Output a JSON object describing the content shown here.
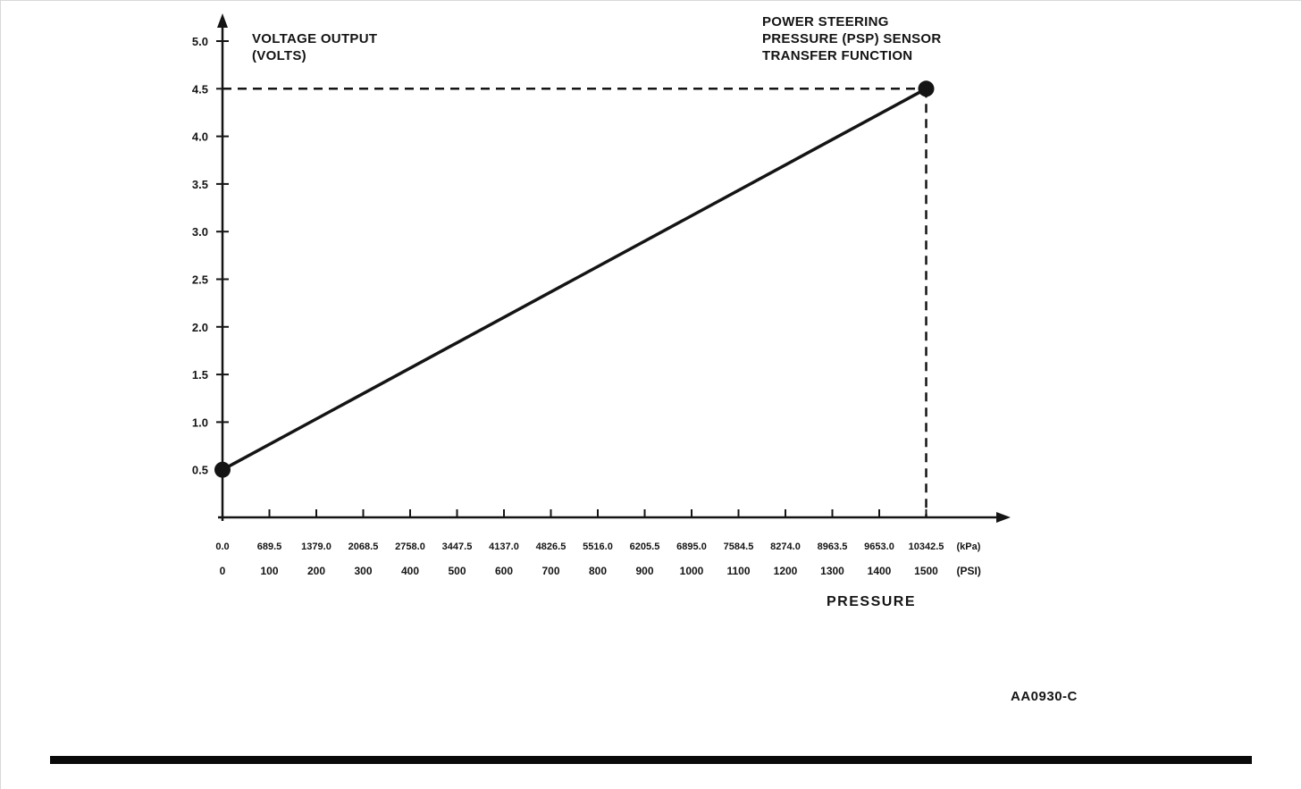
{
  "chart_data": {
    "type": "line",
    "title": "POWER STEERING PRESSURE (PSP) SENSOR TRANSFER FUNCTION",
    "title_lines": [
      "POWER STEERING",
      "PRESSURE (PSP) SENSOR",
      "TRANSFER FUNCTION"
    ],
    "ylabel_lines": [
      "VOLTAGE OUTPUT",
      "(VOLTS)"
    ],
    "xlabel": "PRESSURE",
    "figure_code": "AA0930-C",
    "y_ticks": [
      "0.5",
      "1.0",
      "1.5",
      "2.0",
      "2.5",
      "3.0",
      "3.5",
      "4.0",
      "4.5",
      "5.0"
    ],
    "ylim": [
      0,
      5.0
    ],
    "x_ticks_kpa": [
      "0.0",
      "689.5",
      "1379.0",
      "2068.5",
      "2758.0",
      "3447.5",
      "4137.0",
      "4826.5",
      "5516.0",
      "6205.5",
      "6895.0",
      "7584.5",
      "8274.0",
      "8963.5",
      "9653.0",
      "10342.5"
    ],
    "x_ticks_psi": [
      "0",
      "100",
      "200",
      "300",
      "400",
      "500",
      "600",
      "700",
      "800",
      "900",
      "1000",
      "1100",
      "1200",
      "1300",
      "1400",
      "1500"
    ],
    "x_units": [
      "(kPa)",
      "(PSI)"
    ],
    "xlim_psi": [
      0,
      1500
    ],
    "series": [
      {
        "name": "psp-transfer-function",
        "points_psi_volts": [
          [
            0,
            0.5
          ],
          [
            1500,
            4.5
          ]
        ]
      }
    ],
    "reference_lines": {
      "dashed_horizontal_volts": 4.5,
      "dashed_vertical_psi": 1500
    },
    "line_color": "#141414",
    "background_color": "#ffffff"
  }
}
